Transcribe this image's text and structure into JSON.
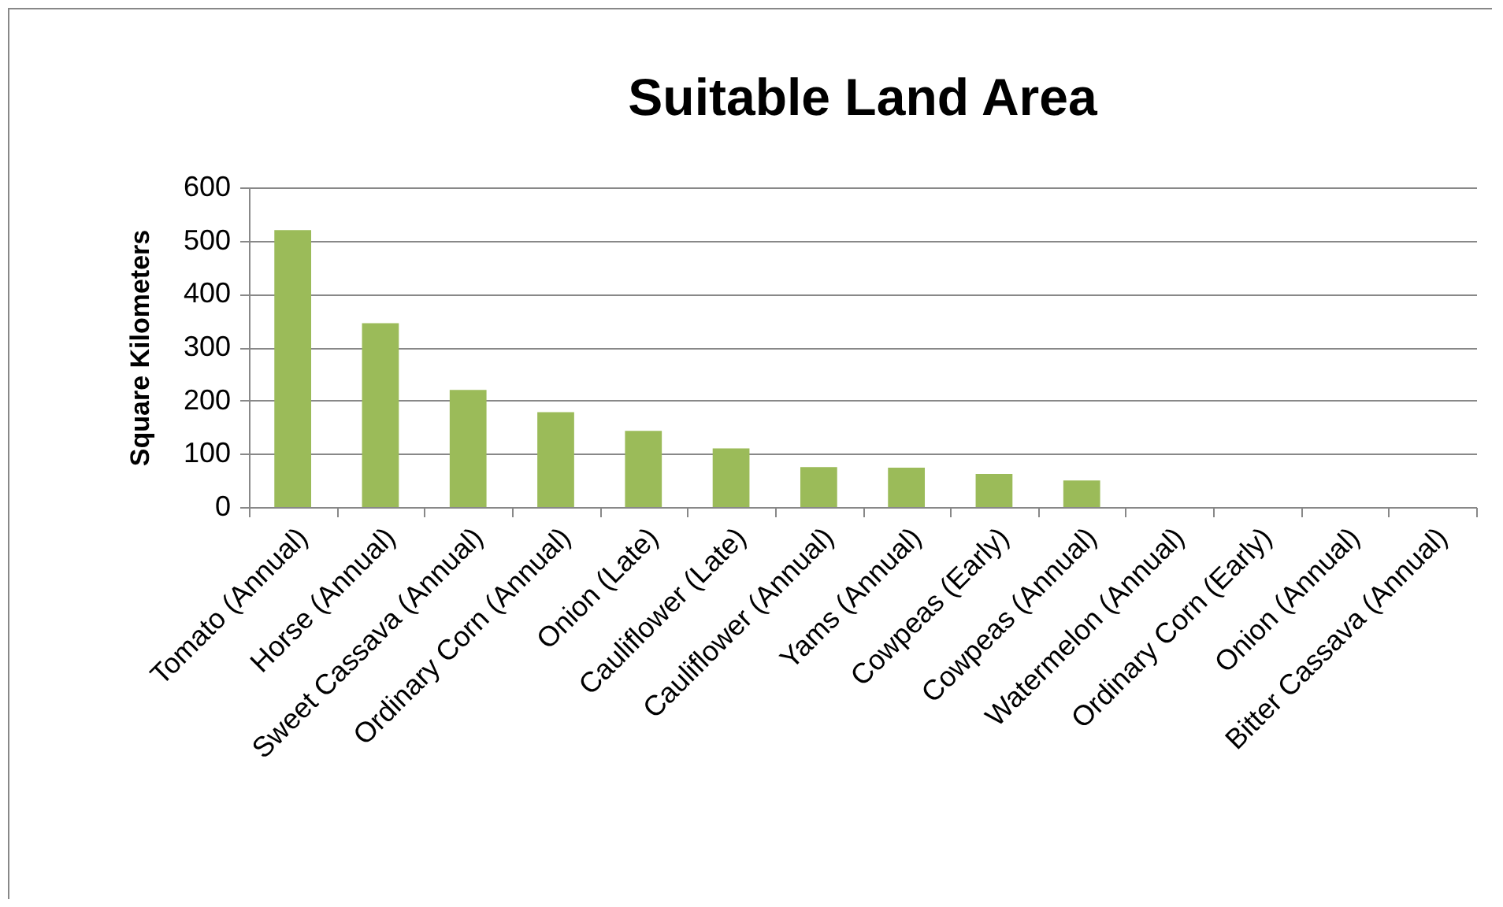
{
  "chart_data": {
    "type": "bar",
    "title": "Suitable Land Area",
    "ylabel": "Square Kilometers",
    "categories": [
      "Tomato (Annual)",
      "Horse (Annual)",
      "Sweet Cassava (Annual)",
      "Ordinary Corn (Annual)",
      "Onion (Late)",
      "Cauliflower (Late)",
      "Cauliflower (Annual)",
      "Yams (Annual)",
      "Cowpeas (Early)",
      "Cowpeas (Annual)",
      "Watermelon (Annual)",
      "Ordinary Corn (Early)",
      "Onion (Annual)",
      "Bitter Cassava (Annual)"
    ],
    "values": [
      520,
      345,
      220,
      178,
      143,
      110,
      75,
      74,
      62,
      50,
      0,
      0,
      0,
      0
    ],
    "color": "#9bbb59",
    "ylim": [
      0,
      600
    ],
    "yticks": [
      0,
      100,
      200,
      300,
      400,
      500,
      600
    ],
    "grid": "y"
  }
}
